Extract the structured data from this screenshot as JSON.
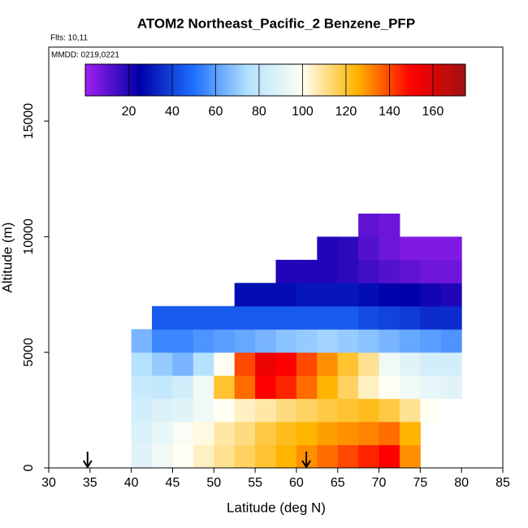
{
  "chart_data": {
    "type": "heatmap",
    "title": "ATOM2 Northeast_Pacific_2 Benzene_PFP",
    "flights": "Flts: 10,11",
    "dates": "MMDD: 0219,0221",
    "xlabel": "Latitude (deg N)",
    "ylabel": "Altitude (m)",
    "xlim": [
      30,
      85
    ],
    "xticks": [
      30,
      35,
      40,
      45,
      50,
      55,
      60,
      65,
      70,
      75,
      80,
      85
    ],
    "ylim": [
      0,
      18200
    ],
    "yticks": [
      0,
      5000,
      10000,
      15000
    ],
    "zlim": [
      0,
      175
    ],
    "zticks": [
      20,
      40,
      60,
      80,
      100,
      120,
      140,
      160
    ],
    "colorscale": [
      "#a020f0",
      "#0000a8",
      "#1e70ff",
      "#b4e2ff",
      "#fffff4",
      "#ffb400",
      "#ff0000",
      "#a01010"
    ],
    "x_edges": [
      40,
      42.5,
      45,
      47.5,
      50,
      52.5,
      55,
      57.5,
      60,
      62.5,
      65,
      67.5,
      70,
      72.5,
      75,
      77.5,
      80
    ],
    "y_edges": [
      0,
      1000,
      2000,
      3000,
      4000,
      5000,
      6000,
      7000,
      8000,
      9000,
      10000,
      11000
    ],
    "z": [
      [
        90,
        95,
        100,
        105,
        110,
        115,
        120,
        125,
        130,
        135,
        140,
        145,
        150,
        130,
        null,
        null
      ],
      [
        88,
        92,
        98,
        102,
        108,
        112,
        118,
        122,
        125,
        128,
        130,
        132,
        135,
        125,
        null,
        null
      ],
      [
        85,
        88,
        90,
        95,
        100,
        105,
        108,
        112,
        115,
        118,
        120,
        122,
        118,
        110,
        100,
        null
      ],
      [
        82,
        80,
        85,
        95,
        120,
        135,
        150,
        145,
        135,
        125,
        115,
        105,
        100,
        95,
        92,
        90
      ],
      [
        75,
        70,
        65,
        75,
        100,
        140,
        155,
        150,
        140,
        130,
        120,
        110,
        95,
        90,
        85,
        85
      ],
      [
        65,
        55,
        55,
        58,
        60,
        62,
        65,
        68,
        70,
        72,
        70,
        68,
        65,
        62,
        60,
        58
      ],
      [
        null,
        45,
        45,
        45,
        45,
        45,
        45,
        45,
        45,
        45,
        45,
        42,
        40,
        38,
        35,
        35
      ],
      [
        null,
        null,
        null,
        null,
        null,
        28,
        28,
        28,
        30,
        30,
        30,
        28,
        26,
        25,
        22,
        20
      ],
      [
        null,
        null,
        null,
        null,
        null,
        null,
        null,
        20,
        20,
        20,
        18,
        15,
        12,
        10,
        8,
        8
      ],
      [
        null,
        null,
        null,
        null,
        null,
        null,
        null,
        null,
        null,
        20,
        18,
        12,
        8,
        5,
        5,
        5
      ],
      [
        null,
        null,
        null,
        null,
        null,
        null,
        null,
        null,
        null,
        null,
        null,
        10,
        8,
        null,
        null,
        null
      ]
    ],
    "arrows": [
      34.7,
      61.2
    ]
  }
}
